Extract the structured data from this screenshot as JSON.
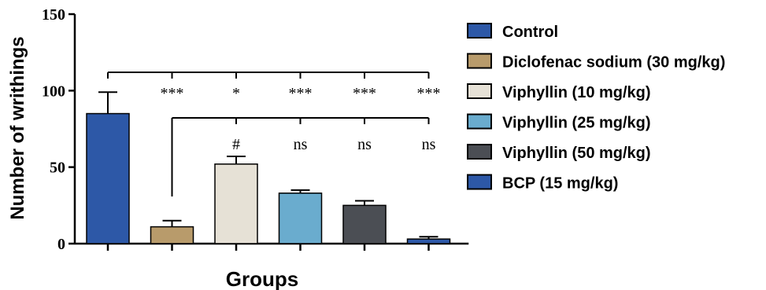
{
  "chart_data": {
    "type": "bar",
    "xlabel": "Groups",
    "ylabel": "Number of writhings",
    "ylim": [
      0,
      150
    ],
    "yticks": [
      "0",
      "50",
      "100",
      "150"
    ],
    "grid": false,
    "legend_position": "right",
    "series": [
      {
        "name": "Control",
        "value": 85,
        "error": 14,
        "color": "#2d58a7"
      },
      {
        "name": "Diclofenac sodium (30 mg/kg)",
        "value": 11,
        "error": 4,
        "color": "#b89b6b"
      },
      {
        "name": "Viphyllin (10 mg/kg)",
        "value": 52,
        "error": 5,
        "color": "#e6e1d6"
      },
      {
        "name": "Viphyllin (25 mg/kg)",
        "value": 33,
        "error": 2,
        "color": "#6aacce"
      },
      {
        "name": "Viphyllin (50 mg/kg)",
        "value": 25,
        "error": 3,
        "color": "#4b4e54"
      },
      {
        "name": "BCP (15 mg/kg)",
        "value": 3,
        "error": 1.5,
        "color": "#2d58a7"
      }
    ],
    "comparisons": [
      {
        "reference": "Control",
        "marks": [
          "***",
          "*",
          "***",
          "***",
          "***"
        ]
      },
      {
        "reference": "Diclofenac sodium (30 mg/kg)",
        "marks": [
          "#",
          "ns",
          "ns",
          "ns"
        ]
      }
    ]
  }
}
